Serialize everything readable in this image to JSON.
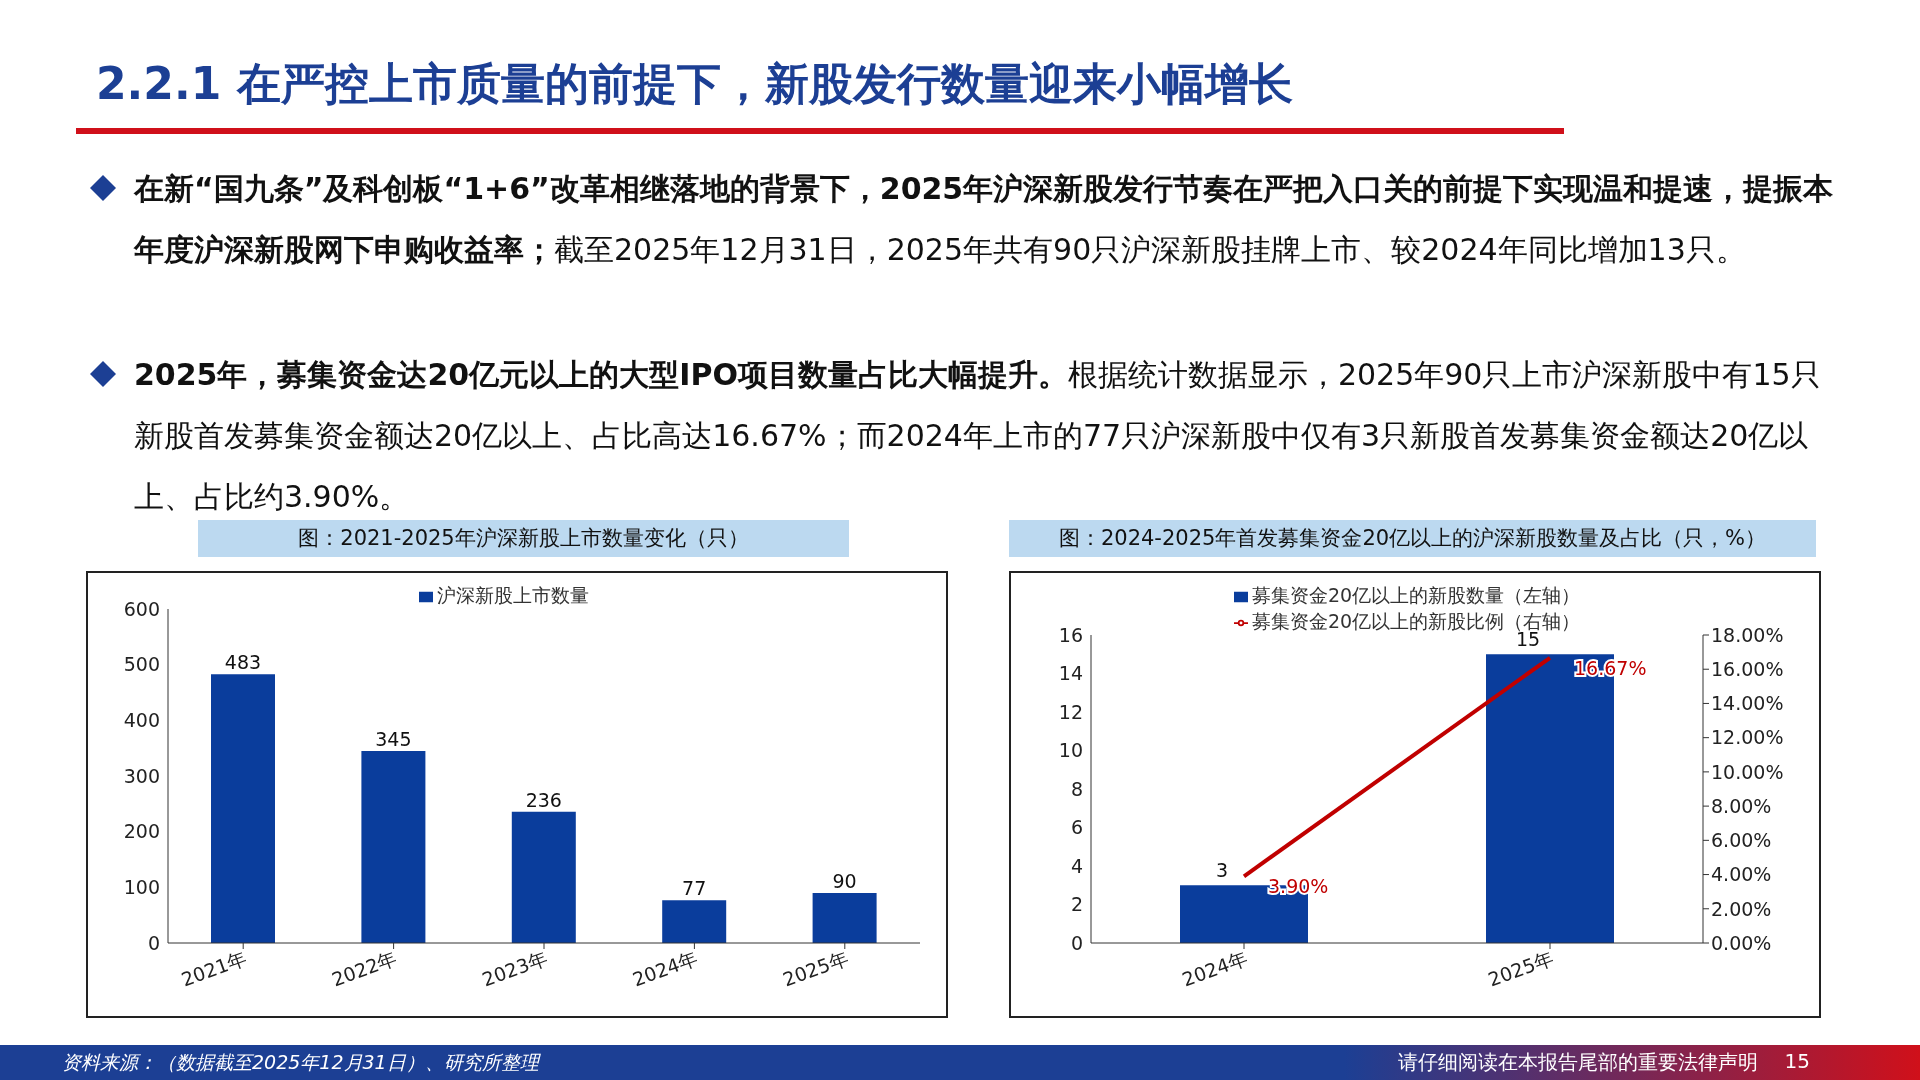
{
  "chart_data": [
    {
      "type": "other",
      "title": "2.2.1 在严控上市质量的前提下，新股发行数量迎来小幅增长",
      "annotations": [
        "在新“国九条”及科创板“1+6”改革相继落地的背景下，2025年沪深新股发行节奏在严把入口关的前提下实现温和提速，提振本年度沪深新股网下申购收益率；截至2025年12月31日，2025年共有90只沪深新股挂牌上市、较2024年同比增加13只。",
        "2025年，募集资金达20亿元以上的大型IPO项目数量占比大幅提升。根据统计数据显示，2025年90只上市沪深新股中有15只新股首发募集资金额达20亿以上、占比高达16.67%；而2024年上市的77只沪深新股中仅有3只新股首发募集资金额达20亿以上、占比约3.90%。",
        "资料来源：（数据截至2025年12月31日）、研究所整理",
        "请仔细阅读在本报告尾部的重要法律声明",
        "15"
      ]
    },
    {
      "type": "bar",
      "title": "图：2021-2025年沪深新股上市数量变化（只）",
      "categories": [
        "2021年",
        "2022年",
        "2023年",
        "2024年",
        "2025年"
      ],
      "series": [
        {
          "name": "沪深新股上市数量",
          "color": "#0a3d9c",
          "values": [
            483,
            345,
            236,
            77,
            90
          ]
        }
      ],
      "ylim": [
        0,
        600
      ],
      "yticks": [
        0,
        100,
        200,
        300,
        400,
        500,
        600
      ],
      "data_labels": true,
      "legend": "top",
      "grid": false
    },
    {
      "type": "bar",
      "title": "图：2024-2025年首发募集资金20亿以上的沪深新股数量及占比（只，%）",
      "categories": [
        "2024年",
        "2025年"
      ],
      "series": [
        {
          "name": "募集资金20亿以上的新股数量（左轴）",
          "color": "#0a3d9c",
          "values": [
            3,
            15
          ],
          "value_labels": [
            "3",
            "15"
          ]
        },
        {
          "name": "募集资金20亿以上的新股比例（右轴）",
          "type": "line",
          "axis": "y2",
          "color": "#c00000",
          "values": [
            3.9,
            16.67
          ],
          "value_labels": [
            "3.90%",
            "16.67%"
          ]
        }
      ],
      "ylim": [
        0,
        16
      ],
      "yticks": [
        0,
        2,
        4,
        6,
        8,
        10,
        12,
        14,
        16
      ],
      "y2lim": [
        0,
        18
      ],
      "y2ticks": [
        {
          "value": 0,
          "label": "0.00%"
        },
        {
          "value": 2,
          "label": "2.00%"
        },
        {
          "value": 4,
          "label": "4.00%"
        },
        {
          "value": 6,
          "label": "6.00%"
        },
        {
          "value": 8,
          "label": "8.00%"
        },
        {
          "value": 10,
          "label": "10.00%"
        },
        {
          "value": 12,
          "label": "12.00%"
        },
        {
          "value": 14,
          "label": "14.00%"
        },
        {
          "value": 16,
          "label": "16.00%"
        },
        {
          "value": 18,
          "label": "18.00%"
        }
      ],
      "legend": "top",
      "grid": false,
      "marker": "none"
    }
  ]
}
